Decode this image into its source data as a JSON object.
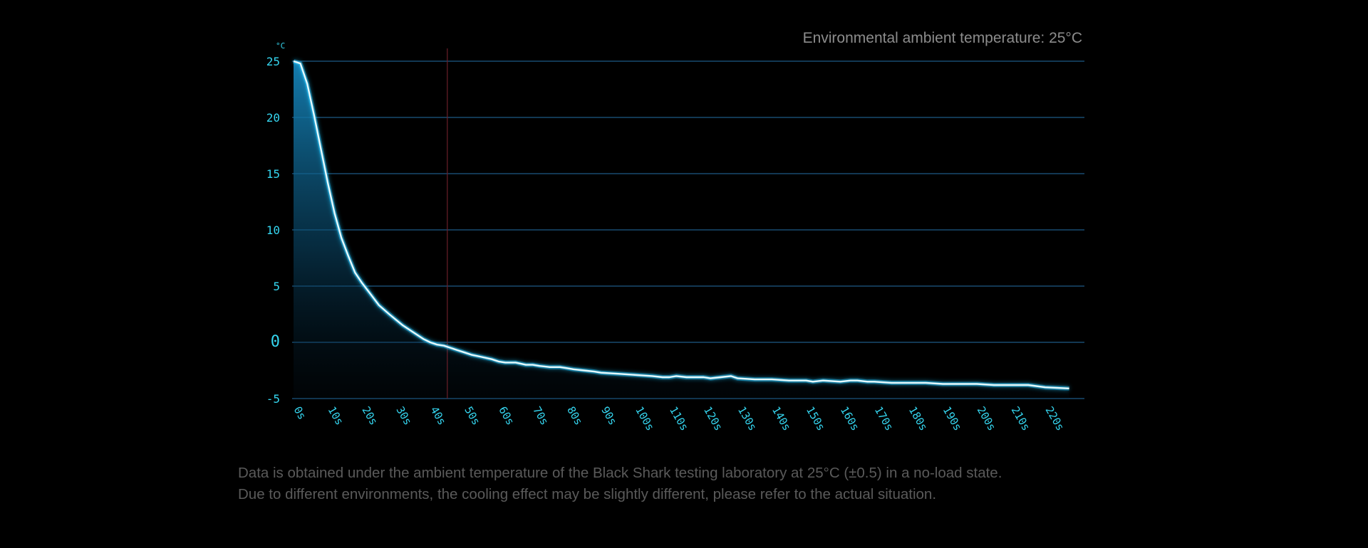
{
  "colors": {
    "background": "#000000",
    "grid": "#1c5a86",
    "curve": "#e6fbff",
    "curve_glow": "#28c8ff",
    "area_top": "#1583b8",
    "tick_label": "#35d6f0",
    "marker_line": "#6b1f2a",
    "text_muted": "#8c8c8c",
    "footnote": "#5a5a5a"
  },
  "ambient_note": "Environmental ambient temperature: 25°C",
  "footnote": {
    "line1": "Data is obtained under the ambient temperature of the Black Shark testing laboratory at 25°C (±0.5) in a no-load state.",
    "line2": "Due to different environments, the cooling effect may be slightly different, please refer to the actual situation."
  },
  "chart_data": {
    "type": "area",
    "title": "",
    "xlabel": "",
    "ylabel": "°C",
    "xlim": [
      0,
      230
    ],
    "ylim": [
      -5,
      25
    ],
    "grid": true,
    "y_ticks": [
      25,
      20,
      15,
      10,
      5,
      0,
      -5
    ],
    "y_tick_labels": [
      "25",
      "20",
      "15",
      "10",
      "5",
      "0",
      "-5"
    ],
    "x_ticks": [
      0,
      10,
      20,
      30,
      40,
      50,
      60,
      70,
      80,
      90,
      100,
      110,
      120,
      130,
      140,
      150,
      160,
      170,
      180,
      190,
      200,
      210,
      220
    ],
    "x_tick_labels": [
      "0s",
      "10s",
      "20s",
      "30s",
      "40s",
      "50s",
      "60s",
      "70s",
      "80s",
      "90s",
      "100s",
      "110s",
      "120s",
      "130s",
      "140s",
      "150s",
      "160s",
      "170s",
      "180s",
      "190s",
      "200s",
      "210s",
      "220s"
    ],
    "marker_x": 45,
    "series": [
      {
        "x": [
          0,
          2,
          4,
          6,
          8,
          10,
          12,
          14,
          16,
          18,
          20,
          22,
          25,
          28,
          30,
          32,
          35,
          38,
          40,
          42,
          44,
          46,
          48,
          50,
          52,
          55,
          58,
          60,
          62,
          65,
          68,
          70,
          72,
          75,
          78,
          80,
          82,
          85,
          88,
          90,
          95,
          100,
          105,
          108,
          110,
          112,
          115,
          120,
          122,
          125,
          128,
          130,
          135,
          140,
          145,
          150,
          152,
          155,
          160,
          163,
          165,
          168,
          170,
          175,
          180,
          183,
          185,
          190,
          195,
          200,
          205,
          210,
          215,
          220,
          227
        ],
        "y": [
          25,
          24.8,
          23,
          20.2,
          17.2,
          14.2,
          11.5,
          9.3,
          7.7,
          6.2,
          5.3,
          4.5,
          3.3,
          2.5,
          2.0,
          1.5,
          0.9,
          0.3,
          0.0,
          -0.2,
          -0.3,
          -0.5,
          -0.7,
          -0.9,
          -1.1,
          -1.3,
          -1.5,
          -1.7,
          -1.8,
          -1.8,
          -2.0,
          -2.0,
          -2.1,
          -2.2,
          -2.2,
          -2.3,
          -2.4,
          -2.5,
          -2.6,
          -2.7,
          -2.8,
          -2.9,
          -3.0,
          -3.1,
          -3.1,
          -3.0,
          -3.1,
          -3.1,
          -3.2,
          -3.1,
          -3.0,
          -3.2,
          -3.3,
          -3.3,
          -3.4,
          -3.4,
          -3.5,
          -3.4,
          -3.5,
          -3.4,
          -3.4,
          -3.5,
          -3.5,
          -3.6,
          -3.6,
          -3.6,
          -3.6,
          -3.7,
          -3.7,
          -3.7,
          -3.8,
          -3.8,
          -3.8,
          -4.0,
          -4.1
        ]
      }
    ]
  }
}
